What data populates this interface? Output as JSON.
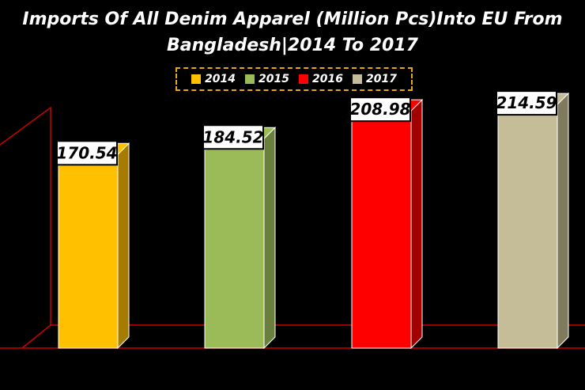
{
  "chart_data": {
    "type": "bar",
    "title": "Imports Of All Denim Apparel (Million Pcs)Into EU From\nBangladesh|2014 To 2017",
    "categories": [
      "2014",
      "2015",
      "2016",
      "2017"
    ],
    "values": [
      170.54,
      184.52,
      208.98,
      214.59
    ],
    "colors": [
      "#ffc000",
      "#9bbb59",
      "#ff0000",
      "#c4bd97"
    ],
    "side_colors": [
      "#a67c00",
      "#6b7f3c",
      "#a30000",
      "#807a5c"
    ],
    "axis_color": "#cc0000",
    "legend": {
      "position": "top",
      "entries": [
        "2014",
        "2015",
        "2016",
        "2017"
      ]
    },
    "grid": false,
    "ylim": [
      0,
      230
    ],
    "xlabel": "",
    "ylabel": ""
  }
}
